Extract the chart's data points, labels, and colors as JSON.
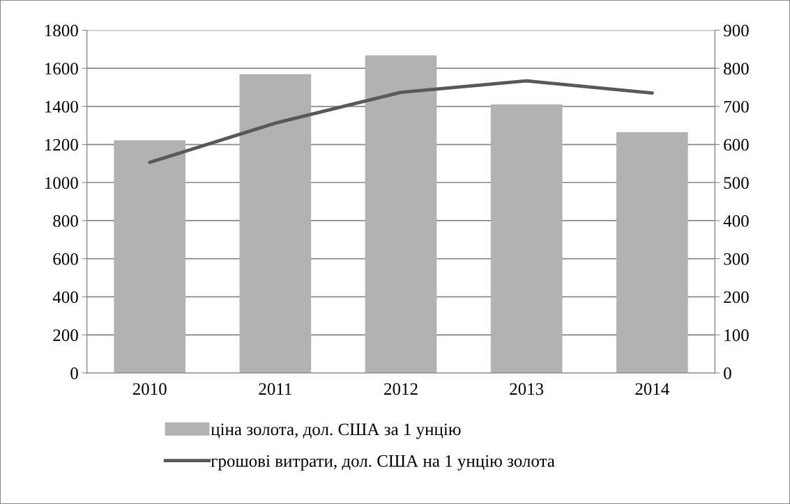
{
  "chart_data": {
    "type": "bar",
    "categories": [
      "2010",
      "2011",
      "2012",
      "2013",
      "2014"
    ],
    "series": [
      {
        "name": "ціна золота, дол. США за 1 унцію",
        "color": "#b2b2b2",
        "values": [
          1222,
          1569,
          1668,
          1410,
          1265
        ]
      },
      {
        "name": "грошові витрати, дол. США на 1 унцію золота",
        "color": "#595959",
        "type": "line",
        "axis": "y2",
        "values": [
          553,
          656,
          737,
          767,
          735
        ]
      }
    ],
    "ylim": [
      0,
      1800
    ],
    "yticks": [
      0,
      200,
      400,
      600,
      800,
      1000,
      1200,
      1400,
      1600,
      1800
    ],
    "y2lim": [
      0,
      900
    ],
    "y2ticks": [
      0,
      100,
      200,
      300,
      400,
      500,
      600,
      700,
      800,
      900
    ],
    "grid": "y",
    "legend": "bottom",
    "marker": "none"
  }
}
